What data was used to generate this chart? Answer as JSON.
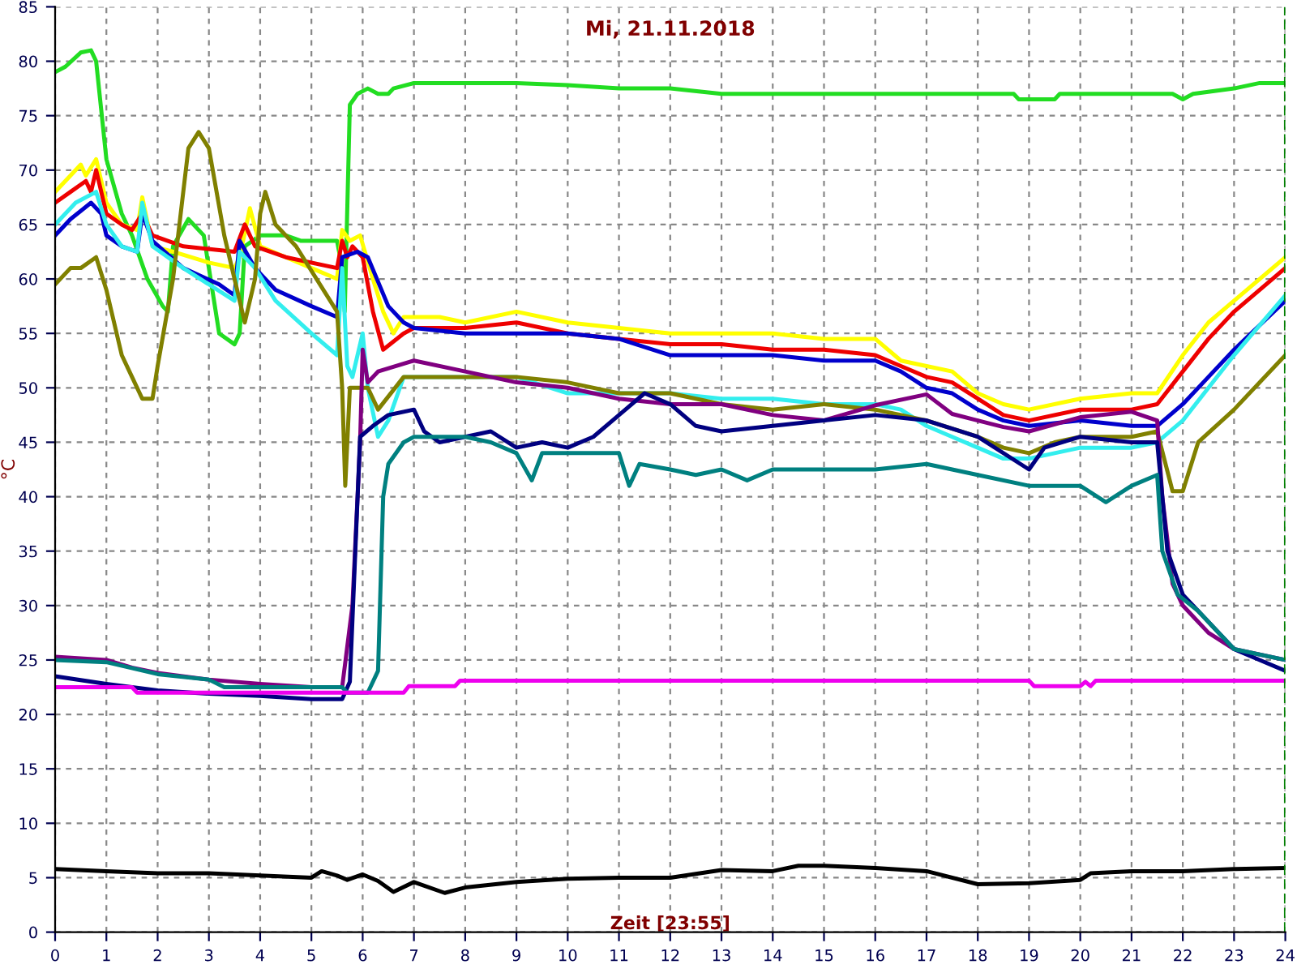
{
  "chart_data": {
    "type": "line",
    "title": "Mi, 21.11.2018",
    "xlabel": "Zeit [23:55]",
    "ylabel": "°C",
    "xlim": [
      0,
      24
    ],
    "ylim": [
      0,
      85
    ],
    "xticks": [
      0,
      1,
      2,
      3,
      4,
      5,
      6,
      7,
      8,
      9,
      10,
      11,
      12,
      13,
      14,
      15,
      16,
      17,
      18,
      19,
      20,
      21,
      22,
      23,
      24
    ],
    "yticks": [
      0,
      5,
      10,
      15,
      20,
      25,
      30,
      35,
      40,
      45,
      50,
      55,
      60,
      65,
      70,
      75,
      80,
      85
    ],
    "grid": true,
    "legend": false,
    "line_style": "solid",
    "marker": "none",
    "ref_lines": [
      {
        "axis": "x",
        "value": 24,
        "color": "#008000",
        "line_style": "dashed"
      }
    ],
    "series": [
      {
        "color": "#22dd22",
        "x": [
          0,
          0.2,
          0.5,
          0.7,
          0.8,
          1.0,
          1.3,
          1.5,
          1.8,
          2.1,
          2.2,
          2.3,
          2.6,
          2.9,
          3.2,
          3.5,
          3.6,
          3.7,
          4.0,
          4.5,
          4.8,
          5.5,
          5.6,
          5.65,
          5.75,
          5.9,
          6.1,
          6.3,
          6.5,
          6.6,
          7,
          8,
          9,
          10,
          11,
          12,
          13,
          14,
          15,
          16,
          17,
          18,
          18.7,
          18.8,
          19.5,
          19.6,
          21,
          21.8,
          22,
          22.2,
          23,
          23.5,
          24
        ],
        "values": [
          79,
          79.5,
          80.8,
          81,
          80,
          71,
          66,
          64,
          60,
          57.5,
          57,
          63,
          65.5,
          64,
          55,
          54,
          55,
          63,
          64,
          64,
          63.5,
          63.5,
          61,
          57,
          76,
          77,
          77.5,
          77,
          77,
          77.5,
          78,
          78,
          78,
          77.8,
          77.5,
          77.5,
          77,
          77,
          77,
          77,
          77,
          77,
          77,
          76.5,
          76.5,
          77,
          77,
          77,
          76.5,
          77,
          77.5,
          78,
          78
        ]
      },
      {
        "color": "#ffff00",
        "x": [
          0,
          0.3,
          0.5,
          0.6,
          0.8,
          1.0,
          1.3,
          1.6,
          1.7,
          1.9,
          2.3,
          3,
          3.5,
          3.6,
          3.8,
          4.0,
          4.5,
          5.0,
          5.5,
          5.6,
          5.75,
          5.95,
          6.2,
          6.4,
          6.6,
          6.8,
          7.5,
          8,
          9,
          10,
          11,
          12,
          13,
          14,
          15,
          16,
          16.5,
          17,
          17.5,
          18,
          18.5,
          19,
          20,
          21,
          21.5,
          22,
          22.5,
          23,
          24
        ],
        "values": [
          68,
          69.5,
          70.5,
          69.5,
          71,
          67,
          65,
          64.5,
          67.5,
          63,
          62.5,
          61.5,
          61,
          62,
          66.5,
          63,
          62,
          61,
          60,
          64.5,
          63.5,
          64,
          60,
          57,
          55,
          56.5,
          56.5,
          56,
          57,
          56,
          55.5,
          55,
          55,
          55,
          54.5,
          54.5,
          52.5,
          52,
          51.5,
          49.5,
          48.5,
          48,
          49,
          49.5,
          49.5,
          53,
          56,
          58,
          62
        ]
      },
      {
        "color": "#ee0000",
        "x": [
          0,
          0.3,
          0.6,
          0.7,
          0.8,
          1.0,
          1.3,
          1.5,
          1.7,
          1.9,
          2.5,
          3.5,
          3.7,
          3.9,
          4.5,
          5.5,
          5.6,
          5.7,
          5.8,
          6.0,
          6.2,
          6.4,
          6.8,
          7,
          8,
          9,
          10,
          11,
          12,
          13,
          14,
          15,
          16,
          16.5,
          17,
          17.5,
          18,
          18.5,
          19,
          20,
          21,
          21.5,
          22,
          22.5,
          23,
          24
        ],
        "values": [
          67,
          68,
          69,
          68,
          70,
          66,
          65,
          64.5,
          66,
          64,
          63,
          62.5,
          65,
          63,
          62,
          61,
          63.5,
          62,
          63,
          62,
          57,
          53.5,
          55,
          55.5,
          55.5,
          56,
          55,
          54.5,
          54,
          54,
          53.5,
          53.5,
          53,
          52,
          51,
          50.5,
          49,
          47.5,
          47,
          48,
          48,
          48.5,
          51.5,
          54.5,
          57,
          61
        ]
      },
      {
        "color": "#0000cc",
        "x": [
          0,
          0.3,
          0.7,
          0.9,
          1.0,
          1.3,
          1.6,
          1.7,
          1.9,
          2.5,
          3.2,
          3.5,
          3.6,
          3.9,
          4.3,
          5,
          5.5,
          5.6,
          5.9,
          6.1,
          6.5,
          6.8,
          7,
          8,
          9,
          10,
          11,
          12,
          13,
          14,
          15,
          16,
          16.5,
          17,
          17.5,
          18,
          18.5,
          19,
          20,
          21,
          21.5,
          22,
          22.5,
          23,
          24
        ],
        "values": [
          64,
          65.5,
          67,
          66,
          64,
          63,
          62.5,
          66,
          63.5,
          61,
          59.5,
          58.5,
          63.5,
          61,
          59,
          57.5,
          56.5,
          62,
          62.5,
          62,
          57.5,
          56,
          55.5,
          55,
          55,
          55,
          54.5,
          53,
          53,
          53,
          52.5,
          52.5,
          51.5,
          50,
          49.5,
          48,
          47,
          46.5,
          47,
          46.5,
          46.5,
          48.5,
          51,
          53.5,
          58
        ]
      },
      {
        "color": "#33eeee",
        "x": [
          0,
          0.4,
          0.8,
          1.0,
          1.3,
          1.6,
          1.7,
          1.9,
          2.5,
          3.5,
          3.6,
          3.9,
          4.3,
          5,
          5.5,
          5.6,
          5.7,
          5.8,
          6.0,
          6.1,
          6.3,
          6.5,
          6.8,
          7.5,
          9,
          10,
          11,
          12,
          13,
          14,
          15,
          16,
          16.5,
          17,
          17.5,
          18,
          18.5,
          19,
          20,
          21,
          21.5,
          22,
          22.5,
          23,
          24
        ],
        "values": [
          65,
          67,
          68,
          65,
          63,
          62.5,
          67,
          63,
          61,
          58,
          62.5,
          61,
          58,
          55,
          53,
          61,
          52,
          51,
          55,
          50,
          45.5,
          47,
          51,
          51,
          51,
          49.5,
          49.5,
          49.5,
          49,
          49,
          48.5,
          48.5,
          48,
          46.5,
          45.5,
          44.5,
          43.5,
          43.5,
          44.5,
          44.5,
          45,
          47,
          50,
          53,
          58.5
        ]
      },
      {
        "color": "#808000",
        "x": [
          0,
          0.3,
          0.5,
          0.8,
          1.0,
          1.3,
          1.5,
          1.7,
          1.9,
          2.0,
          2.3,
          2.6,
          2.8,
          3.0,
          3.3,
          3.6,
          3.7,
          3.9,
          4.0,
          4.1,
          4.3,
          4.7,
          5.5,
          5.6,
          5.66,
          5.75,
          6.1,
          6.3,
          6.8,
          7.5,
          9,
          10,
          11,
          12,
          13,
          14,
          15,
          16,
          17,
          18,
          18.5,
          19,
          19.5,
          20,
          21,
          21.5,
          21.8,
          22,
          22.3,
          23,
          24
        ],
        "values": [
          59.5,
          61,
          61,
          62,
          59,
          53,
          51,
          49,
          49,
          52,
          60,
          72,
          73.5,
          72,
          64,
          58,
          56,
          60,
          66,
          68,
          65,
          63,
          57,
          50,
          41,
          50,
          50,
          48,
          51,
          51,
          51,
          50.5,
          49.5,
          49.5,
          48.5,
          48,
          48.5,
          48,
          47,
          45.5,
          44.5,
          44,
          45,
          45.5,
          45.5,
          46,
          40.5,
          40.5,
          45,
          48,
          53
        ]
      },
      {
        "color": "#800080",
        "x": [
          0,
          1,
          1.5,
          2,
          3,
          4,
          5,
          5.6,
          5.8,
          5.95,
          6.0,
          6.1,
          6.3,
          7,
          8,
          9,
          10,
          11,
          12,
          13,
          14,
          15,
          16,
          17,
          17.5,
          18,
          18.5,
          19,
          20,
          21,
          21.5,
          21.6,
          21.8,
          22,
          22.5,
          23,
          24
        ],
        "values": [
          25.3,
          25,
          24.3,
          23.8,
          23.2,
          22.8,
          22.5,
          22.5,
          30,
          45,
          53.5,
          50.5,
          51.5,
          52.5,
          51.5,
          50.5,
          50,
          49,
          48.5,
          48.5,
          47.5,
          47,
          48.4,
          49.4,
          47.6,
          47,
          46.4,
          46,
          47.3,
          47.8,
          47,
          40,
          32,
          30,
          27.5,
          26,
          25
        ]
      },
      {
        "color": "#000080",
        "x": [
          0,
          1,
          2,
          3,
          4,
          5,
          5.6,
          5.75,
          5.95,
          6.2,
          6.5,
          7,
          7.2,
          7.5,
          8,
          8.5,
          9,
          9.5,
          10,
          10.5,
          11,
          11.5,
          12,
          12.5,
          13,
          14,
          15,
          16,
          17,
          18,
          19,
          19.3,
          20,
          21,
          21.5,
          21.7,
          22,
          22.5,
          23,
          23.5,
          24
        ],
        "values": [
          23.5,
          22.8,
          22.2,
          21.9,
          21.7,
          21.4,
          21.4,
          23,
          45.5,
          46.5,
          47.5,
          48,
          46,
          45,
          45.5,
          46,
          44.5,
          45,
          44.5,
          45.5,
          47.5,
          49.5,
          48.5,
          46.5,
          46,
          46.5,
          47,
          47.5,
          47,
          45.5,
          42.5,
          44.5,
          45.5,
          45,
          45,
          35,
          31,
          28.5,
          26,
          25,
          24
        ]
      },
      {
        "color": "#008080",
        "x": [
          0,
          1,
          2,
          3,
          3.3,
          5,
          5.6,
          5.7,
          6.1,
          6.3,
          6.4,
          6.5,
          6.8,
          7,
          8,
          8.5,
          9,
          9.3,
          9.5,
          10,
          11,
          11.2,
          11.4,
          12,
          12.5,
          13,
          13.5,
          14,
          15,
          16,
          17,
          18,
          19,
          20,
          20.5,
          21,
          21.5,
          21.6,
          21.9,
          22.3,
          23,
          24
        ],
        "values": [
          25,
          24.8,
          23.7,
          23.2,
          22.5,
          22.5,
          22.5,
          22,
          22,
          24,
          40,
          43,
          45,
          45.5,
          45.5,
          45,
          44,
          41.5,
          44,
          44,
          44,
          41,
          43,
          42.5,
          42,
          42.5,
          41.5,
          42.5,
          42.5,
          42.5,
          43,
          42,
          41,
          41,
          39.5,
          41,
          42,
          35,
          31,
          29.5,
          26,
          25
        ]
      },
      {
        "color": "#ee00ee",
        "x": [
          0,
          1.5,
          1.6,
          2,
          4,
          6,
          6.8,
          6.9,
          7.8,
          7.9,
          19,
          19.1,
          20,
          20.1,
          20.2,
          20.3,
          24
        ],
        "values": [
          22.5,
          22.5,
          22,
          22,
          22,
          22,
          22,
          22.6,
          22.6,
          23.1,
          23.1,
          22.6,
          22.6,
          23,
          22.6,
          23.1,
          23.1
        ]
      },
      {
        "color": "#000000",
        "x": [
          0,
          1,
          2,
          3,
          4,
          5,
          5.2,
          5.5,
          5.7,
          6.0,
          6.3,
          6.6,
          7,
          7.6,
          8,
          9,
          10,
          11,
          12,
          13,
          14,
          14.5,
          15,
          16,
          17,
          18,
          19,
          20,
          20.2,
          21,
          22,
          23,
          24
        ],
        "values": [
          5.8,
          5.6,
          5.4,
          5.4,
          5.2,
          5.0,
          5.6,
          5.2,
          4.8,
          5.3,
          4.7,
          3.7,
          4.6,
          3.6,
          4.1,
          4.6,
          4.9,
          5.0,
          5.0,
          5.7,
          5.6,
          6.1,
          6.1,
          5.9,
          5.6,
          4.4,
          4.5,
          4.8,
          5.4,
          5.6,
          5.6,
          5.8,
          5.9
        ]
      }
    ]
  }
}
